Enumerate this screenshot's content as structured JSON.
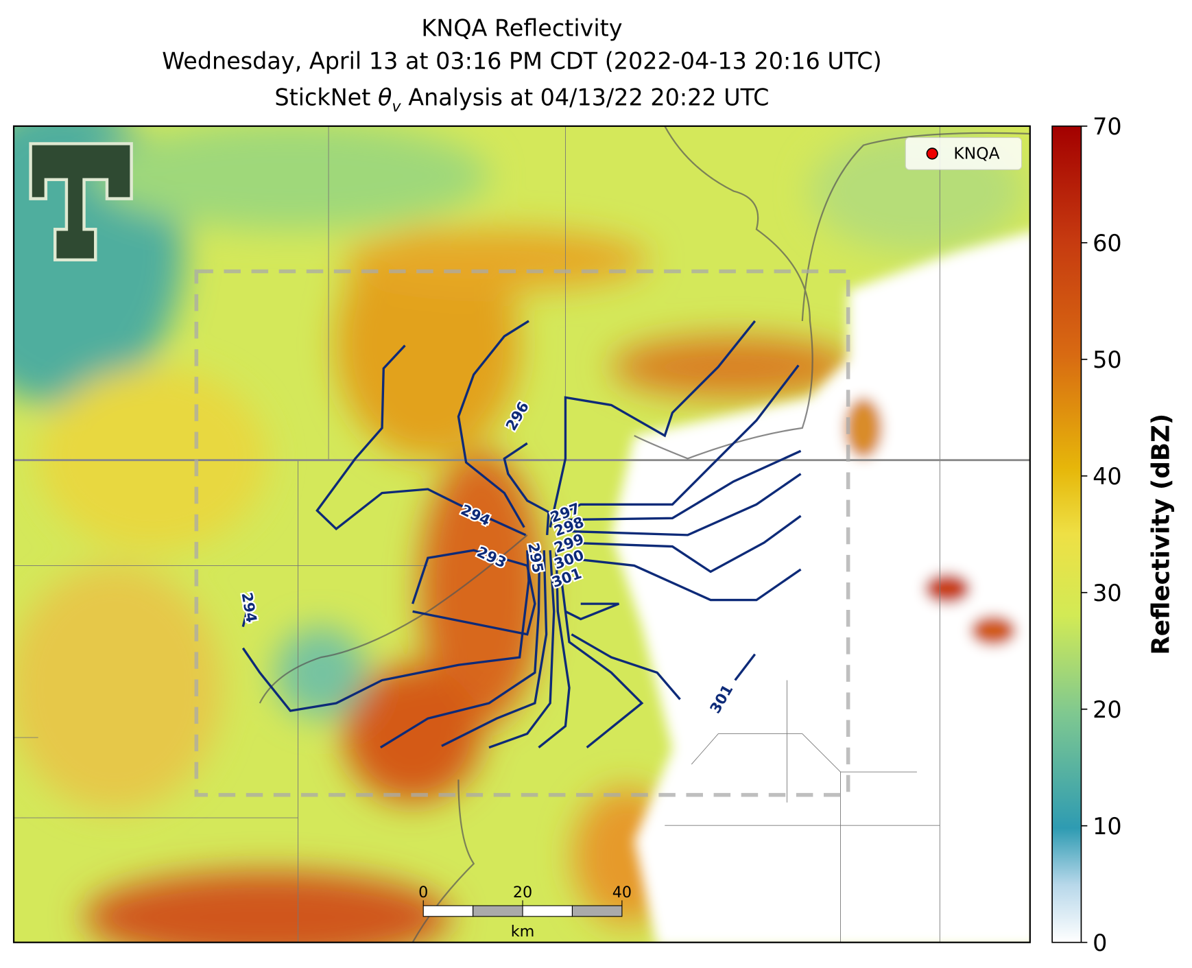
{
  "title": {
    "line1": "KNQA Reflectivity",
    "line2": "Wednesday, April 13 at 03:16 PM CDT (2022-04-13 20:16 UTC)",
    "line3": {
      "before": "StickNet ",
      "symbol": "θ",
      "subscript": "v",
      "after": " Analysis at 04/13/22 20:22 UTC"
    }
  },
  "legend": {
    "label": "KNQA"
  },
  "colorbar": {
    "label": "Reflectivity (dBZ)",
    "lim": [
      0,
      70
    ],
    "ticks": [
      0,
      10,
      20,
      30,
      40,
      50,
      60,
      70
    ]
  },
  "scale_bar": {
    "unit": "km",
    "lim": [
      0,
      40
    ],
    "ticks": [
      0,
      20,
      40
    ]
  },
  "contour_labels": [
    296,
    294,
    293,
    295,
    297,
    298,
    299,
    300,
    301,
    294,
    301
  ]
}
